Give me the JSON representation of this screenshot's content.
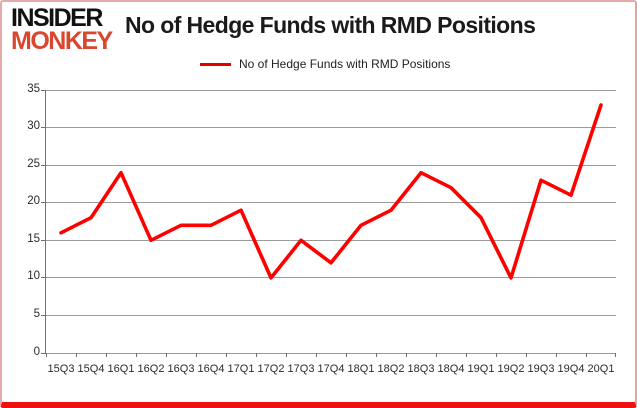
{
  "logo": {
    "line1": "INSIDER",
    "line2": "MONKEY"
  },
  "header": {
    "title": "No of Hedge Funds with RMD Positions"
  },
  "legend": {
    "label": "No of Hedge Funds with RMD Positions"
  },
  "colors": {
    "line": "#ff0000",
    "legend_marker": "#e00000",
    "logo_accent": "#d9472e",
    "frame_border": "#e7aaaa",
    "frame_bottom": "#ee1111",
    "gridline": "#9b9b9b"
  },
  "chart_data": {
    "type": "line",
    "title": "No of Hedge Funds with RMD Positions",
    "categories": [
      "15Q3",
      "15Q4",
      "16Q1",
      "16Q2",
      "16Q3",
      "16Q4",
      "17Q1",
      "17Q2",
      "17Q3",
      "17Q4",
      "18Q1",
      "18Q2",
      "18Q3",
      "18Q4",
      "19Q1",
      "19Q2",
      "19Q3",
      "19Q4",
      "20Q1"
    ],
    "series": [
      {
        "name": "No of Hedge Funds with RMD Positions",
        "color": "#ff0000",
        "values": [
          16,
          18,
          24,
          15,
          17,
          17,
          19,
          10,
          15,
          12,
          17,
          19,
          24,
          22,
          18,
          10,
          23,
          21,
          33
        ]
      }
    ],
    "xlabel": "",
    "ylabel": "",
    "ylim": [
      0,
      35
    ],
    "ytick_step": 5,
    "grid": true,
    "legend_position": "top"
  }
}
